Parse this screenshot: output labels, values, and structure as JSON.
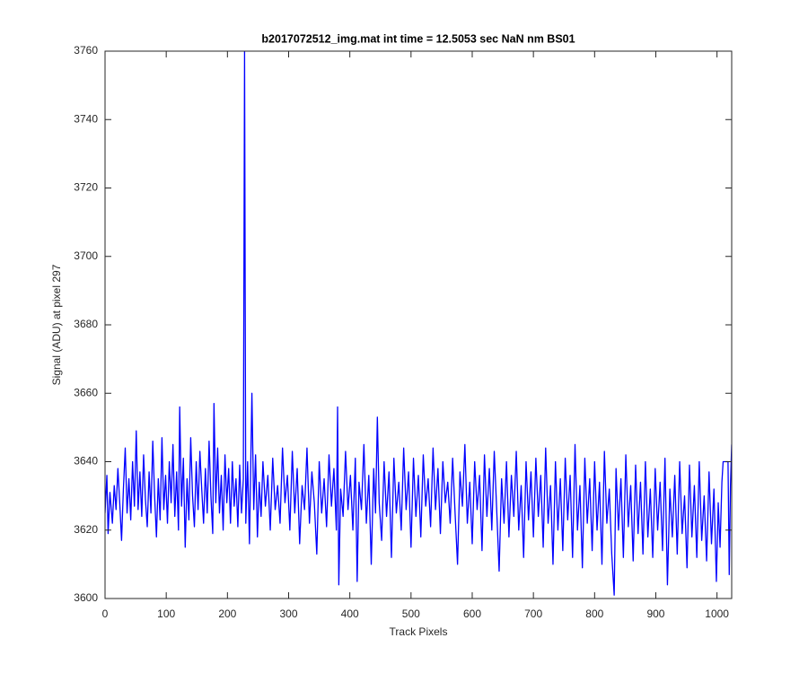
{
  "chart_data": {
    "type": "line",
    "title": "b2017072512_img.mat int time = 12.5053 sec  NaN nm BS01",
    "x_label": "Track Pixels",
    "y_label": "Signal (ADU) at pixel 297",
    "xlim": [
      0,
      1024
    ],
    "ylim": [
      3600,
      3760
    ],
    "xticks": [
      0,
      100,
      200,
      300,
      400,
      500,
      600,
      700,
      800,
      900,
      1000
    ],
    "yticks": [
      3600,
      3620,
      3640,
      3660,
      3680,
      3700,
      3720,
      3740,
      3760
    ],
    "grid": false,
    "x": [
      0,
      3,
      5,
      8,
      12,
      15,
      18,
      21,
      24,
      27,
      30,
      33,
      36,
      39,
      42,
      45,
      48,
      51,
      54,
      57,
      60,
      63,
      66,
      69,
      72,
      75,
      78,
      81,
      84,
      87,
      90,
      93,
      96,
      99,
      102,
      105,
      108,
      111,
      114,
      117,
      120,
      122,
      125,
      128,
      131,
      134,
      137,
      140,
      143,
      146,
      149,
      152,
      155,
      158,
      161,
      164,
      167,
      170,
      173,
      176,
      178,
      181,
      184,
      187,
      190,
      193,
      196,
      199,
      202,
      205,
      208,
      211,
      214,
      217,
      220,
      223,
      226,
      228,
      230,
      233,
      236,
      240,
      243,
      246,
      249,
      252,
      255,
      258,
      262,
      266,
      270,
      274,
      278,
      282,
      286,
      290,
      294,
      298,
      302,
      306,
      310,
      314,
      318,
      322,
      326,
      330,
      334,
      338,
      342,
      346,
      350,
      354,
      358,
      362,
      366,
      370,
      374,
      378,
      380,
      382,
      385,
      389,
      393,
      397,
      401,
      405,
      409,
      412,
      415,
      419,
      423,
      427,
      431,
      435,
      439,
      442,
      445,
      448,
      452,
      456,
      460,
      464,
      468,
      472,
      476,
      480,
      484,
      488,
      492,
      496,
      500,
      504,
      508,
      512,
      516,
      520,
      524,
      528,
      532,
      536,
      540,
      544,
      548,
      552,
      556,
      560,
      564,
      568,
      572,
      576,
      580,
      584,
      588,
      592,
      596,
      600,
      604,
      608,
      612,
      616,
      620,
      624,
      628,
      632,
      636,
      640,
      644,
      648,
      652,
      656,
      660,
      664,
      668,
      672,
      676,
      680,
      684,
      688,
      692,
      696,
      700,
      704,
      708,
      712,
      716,
      720,
      724,
      728,
      732,
      736,
      740,
      744,
      748,
      752,
      756,
      760,
      764,
      768,
      772,
      776,
      780,
      784,
      788,
      792,
      796,
      800,
      804,
      808,
      812,
      816,
      820,
      824,
      828,
      832,
      835,
      839,
      843,
      847,
      851,
      855,
      859,
      863,
      867,
      871,
      875,
      879,
      883,
      887,
      891,
      895,
      899,
      903,
      907,
      911,
      915,
      919,
      923,
      927,
      931,
      935,
      939,
      943,
      947,
      951,
      955,
      959,
      963,
      967,
      971,
      975,
      979,
      983,
      987,
      991,
      995,
      999,
      1002,
      1005,
      1008,
      1010,
      1018,
      1020,
      1022,
      1024
    ],
    "series": [
      {
        "name": "signal",
        "color": "#0000ff",
        "values": [
          3625,
          3636,
          3619,
          3631,
          3622,
          3633,
          3626,
          3638,
          3628,
          3617,
          3632,
          3644,
          3625,
          3635,
          3623,
          3640,
          3627,
          3649,
          3626,
          3637,
          3624,
          3642,
          3629,
          3621,
          3637,
          3625,
          3646,
          3630,
          3618,
          3635,
          3623,
          3647,
          3626,
          3636,
          3622,
          3640,
          3628,
          3645,
          3624,
          3637,
          3620,
          3656,
          3627,
          3641,
          3615,
          3635,
          3623,
          3647,
          3630,
          3621,
          3640,
          3626,
          3643,
          3632,
          3622,
          3638,
          3625,
          3646,
          3630,
          3619,
          3657,
          3628,
          3644,
          3625,
          3636,
          3620,
          3642,
          3628,
          3638,
          3622,
          3640,
          3627,
          3635,
          3621,
          3639,
          3625,
          3635,
          3760,
          3622,
          3640,
          3616,
          3660,
          3626,
          3642,
          3618,
          3634,
          3624,
          3640,
          3627,
          3636,
          3620,
          3641,
          3626,
          3633,
          3622,
          3644,
          3628,
          3636,
          3620,
          3643,
          3625,
          3638,
          3616,
          3633,
          3626,
          3644,
          3622,
          3637,
          3628,
          3613,
          3640,
          3625,
          3635,
          3621,
          3642,
          3627,
          3638,
          3620,
          3656,
          3604,
          3632,
          3624,
          3643,
          3626,
          3636,
          3620,
          3641,
          3605,
          3634,
          3626,
          3645,
          3622,
          3636,
          3610,
          3638,
          3625,
          3653,
          3628,
          3617,
          3640,
          3624,
          3637,
          3612,
          3641,
          3625,
          3634,
          3620,
          3644,
          3626,
          3637,
          3615,
          3641,
          3624,
          3636,
          3618,
          3642,
          3627,
          3635,
          3621,
          3644,
          3626,
          3638,
          3619,
          3640,
          3628,
          3634,
          3622,
          3641,
          3625,
          3610,
          3637,
          3627,
          3645,
          3622,
          3634,
          3616,
          3640,
          3626,
          3636,
          3614,
          3642,
          3624,
          3638,
          3620,
          3643,
          3626,
          3608,
          3635,
          3622,
          3640,
          3618,
          3636,
          3624,
          3643,
          3620,
          3633,
          3612,
          3640,
          3623,
          3637,
          3618,
          3641,
          3624,
          3636,
          3615,
          3644,
          3622,
          3633,
          3610,
          3640,
          3620,
          3635,
          3614,
          3641,
          3623,
          3636,
          3612,
          3645,
          3620,
          3633,
          3609,
          3641,
          3622,
          3635,
          3614,
          3640,
          3620,
          3634,
          3610,
          3643,
          3622,
          3632,
          3613,
          3601,
          3638,
          3620,
          3635,
          3612,
          3642,
          3621,
          3633,
          3611,
          3639,
          3619,
          3634,
          3613,
          3640,
          3618,
          3632,
          3612,
          3638,
          3620,
          3634,
          3614,
          3641,
          3604,
          3632,
          3618,
          3636,
          3613,
          3640,
          3619,
          3630,
          3609,
          3639,
          3618,
          3633,
          3612,
          3640,
          3617,
          3630,
          3611,
          3637,
          3616,
          3632,
          3605,
          3628,
          3615,
          3634,
          3640,
          3640,
          3607,
          3633,
          3645
        ]
      }
    ]
  }
}
